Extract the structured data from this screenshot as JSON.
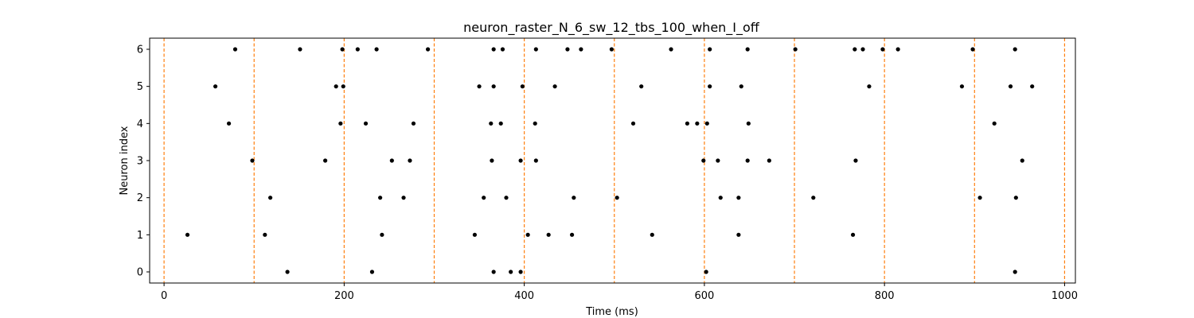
{
  "chart_data": {
    "type": "scatter",
    "title": "neuron_raster_N_6_sw_12_tbs_100_when_I_off",
    "xlabel": "Time (ms)",
    "ylabel": "Neuron index",
    "xlim": [
      -16,
      1012
    ],
    "ylim": [
      -0.3,
      6.3
    ],
    "xticks": [
      0,
      200,
      400,
      600,
      800,
      1000
    ],
    "xtick_labels": [
      "0",
      "200",
      "400",
      "600",
      "800",
      "1000"
    ],
    "yticks": [
      0,
      1,
      2,
      3,
      4,
      5,
      6
    ],
    "ytick_labels": [
      "0",
      "1",
      "2",
      "3",
      "4",
      "5",
      "6"
    ],
    "grid": false,
    "vlines": {
      "x": [
        0,
        100,
        200,
        300,
        400,
        500,
        600,
        700,
        800,
        900,
        1000
      ],
      "color": "#ff7f0e",
      "style": "dashed"
    },
    "marker_color": "#000000",
    "spikes": [
      {
        "neuron": 0,
        "times": [
          137,
          231,
          366,
          385,
          396,
          602,
          945
        ]
      },
      {
        "neuron": 1,
        "times": [
          26,
          112,
          242,
          345,
          404,
          427,
          453,
          542,
          638,
          765
        ]
      },
      {
        "neuron": 2,
        "times": [
          118,
          240,
          266,
          355,
          380,
          455,
          503,
          618,
          638,
          721,
          906,
          946
        ]
      },
      {
        "neuron": 3,
        "times": [
          98,
          179,
          253,
          273,
          364,
          396,
          413,
          599,
          615,
          648,
          672,
          768,
          953
        ]
      },
      {
        "neuron": 4,
        "times": [
          72,
          196,
          224,
          277,
          363,
          374,
          412,
          521,
          581,
          592,
          603,
          649,
          922
        ]
      },
      {
        "neuron": 5,
        "times": [
          57,
          191,
          199,
          350,
          366,
          398,
          434,
          530,
          606,
          641,
          783,
          886,
          940,
          964
        ]
      },
      {
        "neuron": 6,
        "times": [
          79,
          151,
          198,
          215,
          236,
          293,
          366,
          376,
          413,
          448,
          463,
          497,
          563,
          606,
          648,
          701,
          767,
          776,
          798,
          815,
          898,
          945
        ]
      }
    ]
  }
}
